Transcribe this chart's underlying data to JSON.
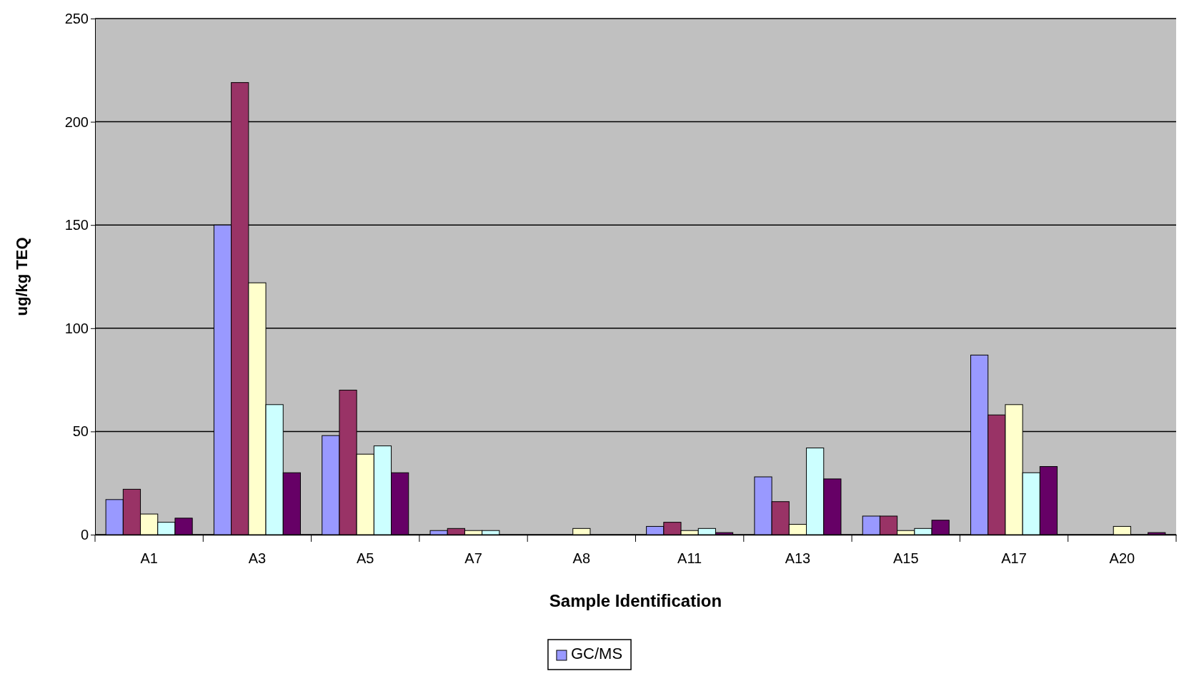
{
  "chart_data": {
    "type": "bar",
    "xlabel": "Sample Identification",
    "ylabel": "ug/kg TEQ",
    "categories": [
      "A1",
      "A3",
      "A5",
      "A7",
      "A8",
      "A11",
      "A13",
      "A15",
      "A17",
      "A20"
    ],
    "series": [
      {
        "name": "GC/MS",
        "color": "#9999ff",
        "values": [
          17,
          150,
          48,
          2,
          null,
          4,
          28,
          9,
          87,
          null
        ]
      },
      {
        "color": "#993366",
        "values": [
          22,
          219,
          70,
          3,
          null,
          6,
          16,
          9,
          58,
          null
        ]
      },
      {
        "color": "#ffffcc",
        "values": [
          10,
          122,
          39,
          2,
          3,
          2,
          5,
          2,
          63,
          4
        ]
      },
      {
        "color": "#ccffff",
        "values": [
          6,
          63,
          43,
          2,
          null,
          3,
          42,
          3,
          30,
          null
        ]
      },
      {
        "color": "#660066",
        "values": [
          8,
          30,
          30,
          null,
          null,
          1,
          27,
          7,
          33,
          1
        ]
      }
    ],
    "ylim": [
      0,
      250
    ],
    "yticks": [
      0,
      50,
      100,
      150,
      200,
      250
    ],
    "grid": "y",
    "legend": "bottom"
  }
}
